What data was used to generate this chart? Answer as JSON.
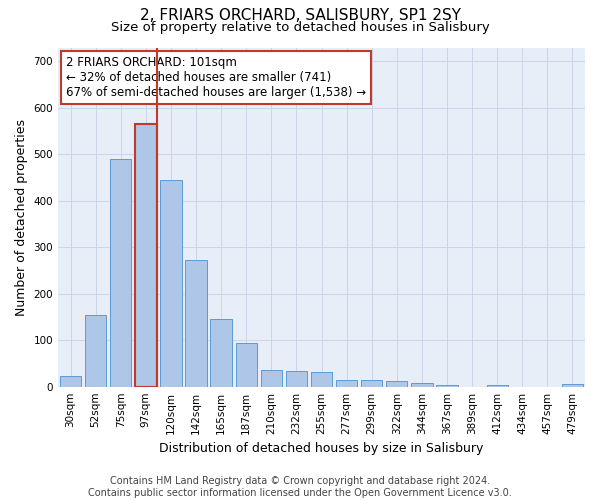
{
  "title": "2, FRIARS ORCHARD, SALISBURY, SP1 2SY",
  "subtitle": "Size of property relative to detached houses in Salisbury",
  "xlabel": "Distribution of detached houses by size in Salisbury",
  "ylabel": "Number of detached properties",
  "categories": [
    "30sqm",
    "52sqm",
    "75sqm",
    "97sqm",
    "120sqm",
    "142sqm",
    "165sqm",
    "187sqm",
    "210sqm",
    "232sqm",
    "255sqm",
    "277sqm",
    "299sqm",
    "322sqm",
    "344sqm",
    "367sqm",
    "389sqm",
    "412sqm",
    "434sqm",
    "457sqm",
    "479sqm"
  ],
  "values": [
    22,
    155,
    490,
    565,
    445,
    272,
    145,
    95,
    35,
    33,
    32,
    15,
    15,
    12,
    7,
    4,
    0,
    4,
    0,
    0,
    5
  ],
  "bar_color": "#aec6e8",
  "bar_edge_color": "#5b9bd5",
  "bar_highlight_index": 3,
  "bar_highlight_edge_color": "#c0392b",
  "vline_color": "#c0392b",
  "annotation_text": "2 FRIARS ORCHARD: 101sqm\n← 32% of detached houses are smaller (741)\n67% of semi-detached houses are larger (1,538) →",
  "annotation_box_color": "#ffffff",
  "annotation_box_edge_color": "#c0392b",
  "ylim": [
    0,
    730
  ],
  "yticks": [
    0,
    100,
    200,
    300,
    400,
    500,
    600,
    700
  ],
  "grid_color": "#cdd5e8",
  "background_color": "#e8eef8",
  "footer_text": "Contains HM Land Registry data © Crown copyright and database right 2024.\nContains public sector information licensed under the Open Government Licence v3.0.",
  "title_fontsize": 11,
  "subtitle_fontsize": 9.5,
  "xlabel_fontsize": 9,
  "ylabel_fontsize": 9,
  "tick_fontsize": 7.5,
  "annotation_fontsize": 8.5,
  "footer_fontsize": 7
}
